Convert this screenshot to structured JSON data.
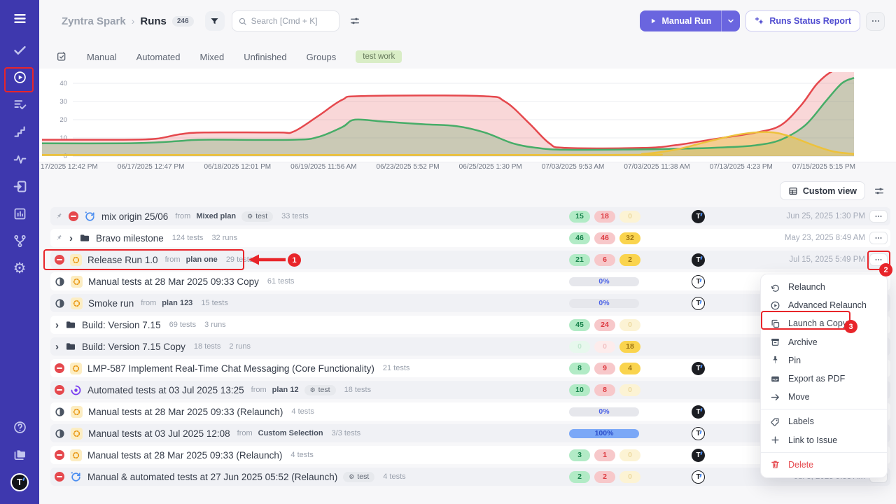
{
  "colors": {
    "accent": "#6a65df",
    "sidebar": "#3e38ae",
    "annotation": "#e8252a",
    "pass": "#17824b",
    "fail": "#e5484d",
    "pending": "#f0c02e"
  },
  "sidebar": {
    "menu_icon": "menu-icon",
    "top_icons": [
      {
        "name": "check-icon"
      },
      {
        "name": "play-circle-icon",
        "active": true,
        "annotated": true
      },
      {
        "name": "list-check-icon"
      },
      {
        "name": "steps-icon"
      },
      {
        "name": "pulse-icon"
      },
      {
        "name": "import-box-icon"
      },
      {
        "name": "bar-chart-icon"
      },
      {
        "name": "branch-icon"
      },
      {
        "name": "gear-icon"
      }
    ],
    "bottom_icons": [
      {
        "name": "help-icon"
      },
      {
        "name": "folders-icon"
      }
    ],
    "avatar_label": "T"
  },
  "header": {
    "breadcrumb": {
      "project": "Zyntra Spark",
      "separator": "›",
      "page": "Runs",
      "count": "246"
    },
    "search": {
      "placeholder": "Search [Cmd + K]"
    },
    "manual_run_label": "Manual Run",
    "runs_status_report_label": "Runs Status Report"
  },
  "tabs": {
    "items": [
      "Manual",
      "Automated",
      "Mixed",
      "Unfinished",
      "Groups"
    ],
    "label_chip": "test work"
  },
  "chart_data": {
    "type": "area",
    "title": "",
    "xlabel": "",
    "ylabel": "",
    "ylim": [
      0,
      45
    ],
    "yticks": [
      0,
      10,
      20,
      30,
      40
    ],
    "grid": true,
    "x_labels": [
      "17/2025 12:42 PM",
      "06/17/2025 12:47 PM",
      "06/18/2025 12:01 PM",
      "06/19/2025 11:56 AM",
      "06/23/2025 5:52 PM",
      "06/25/2025 1:30 PM",
      "07/03/2025 9:53 AM",
      "07/03/2025 11:38 AM",
      "07/13/2025 4:23 PM",
      "07/15/2025 5:15 PM"
    ],
    "series": [
      {
        "name": "failed",
        "color": "#e5484d",
        "fill": "rgba(229,72,77,0.22)",
        "points": [
          [
            0,
            9
          ],
          [
            0.1,
            9
          ],
          [
            0.14,
            9.5
          ],
          [
            0.17,
            12
          ],
          [
            0.2,
            13
          ],
          [
            0.29,
            13
          ],
          [
            0.31,
            13.5
          ],
          [
            0.34,
            22
          ],
          [
            0.37,
            31
          ],
          [
            0.395,
            33
          ],
          [
            0.54,
            33
          ],
          [
            0.57,
            30
          ],
          [
            0.6,
            18
          ],
          [
            0.625,
            7
          ],
          [
            0.645,
            4.5
          ],
          [
            0.74,
            4.5
          ],
          [
            0.78,
            6
          ],
          [
            0.83,
            9.5
          ],
          [
            0.88,
            13
          ],
          [
            0.91,
            17
          ],
          [
            0.935,
            28
          ],
          [
            0.955,
            40
          ],
          [
            0.975,
            47
          ],
          [
            1,
            49
          ]
        ]
      },
      {
        "name": "passed",
        "color": "#47ad68",
        "fill": "rgba(104,170,110,0.32)",
        "points": [
          [
            0,
            7
          ],
          [
            0.1,
            7
          ],
          [
            0.14,
            7.5
          ],
          [
            0.17,
            8.3
          ],
          [
            0.2,
            9
          ],
          [
            0.31,
            9
          ],
          [
            0.34,
            10.5
          ],
          [
            0.37,
            16
          ],
          [
            0.385,
            20
          ],
          [
            0.42,
            19
          ],
          [
            0.47,
            17.5
          ],
          [
            0.51,
            16.5
          ],
          [
            0.545,
            13
          ],
          [
            0.58,
            7
          ],
          [
            0.61,
            4.5
          ],
          [
            0.645,
            3.5
          ],
          [
            0.74,
            3.7
          ],
          [
            0.8,
            4.2
          ],
          [
            0.85,
            5
          ],
          [
            0.88,
            6
          ],
          [
            0.91,
            9
          ],
          [
            0.94,
            17
          ],
          [
            0.965,
            30
          ],
          [
            0.985,
            40
          ],
          [
            1,
            43
          ]
        ]
      },
      {
        "name": "pending",
        "color": "#edc23c",
        "fill": "rgba(237,194,60,0.45)",
        "points": [
          [
            0,
            0.7
          ],
          [
            0.7,
            0.7
          ],
          [
            0.74,
            1.2
          ],
          [
            0.78,
            3.5
          ],
          [
            0.82,
            8
          ],
          [
            0.86,
            12
          ],
          [
            0.895,
            13.2
          ],
          [
            0.92,
            11
          ],
          [
            0.95,
            6
          ],
          [
            0.975,
            2.5
          ],
          [
            1,
            1.2
          ]
        ]
      }
    ]
  },
  "toolbar": {
    "custom_view_label": "Custom view"
  },
  "table": {
    "from_label": "from",
    "rows": [
      {
        "pinned": true,
        "status": "blocked",
        "type": "mixed",
        "title": "mix origin 25/06",
        "from": "Mixed plan",
        "tag": "test",
        "meta": [
          "33 tests"
        ],
        "counts": [
          {
            "v": "15",
            "k": "green"
          },
          {
            "v": "18",
            "k": "red"
          },
          {
            "v": "0",
            "k": "yellow",
            "faded": true
          }
        ],
        "avatar": "filled",
        "date": "Jun 25, 2025 1:30 PM",
        "dots": true
      },
      {
        "pinned": true,
        "chevron": true,
        "type": "folder",
        "title": "Bravo milestone",
        "meta": [
          "124 tests",
          "32 runs"
        ],
        "counts": [
          {
            "v": "46",
            "k": "green"
          },
          {
            "v": "46",
            "k": "red"
          },
          {
            "v": "32",
            "k": "yellow"
          }
        ],
        "date": "May 23, 2025 8:49 AM",
        "dots": true
      },
      {
        "status": "blocked",
        "type": "manual",
        "title": "Release Run 1.0",
        "from": "plan one",
        "meta": [
          "29 tests"
        ],
        "counts": [
          {
            "v": "21",
            "k": "green"
          },
          {
            "v": "6",
            "k": "red"
          },
          {
            "v": "2",
            "k": "yellow"
          }
        ],
        "avatar": "filled",
        "date": "Jul 15, 2025 5:49 PM",
        "dots": true
      },
      {
        "status": "half",
        "type": "manual",
        "title": "Manual tests at 28 Mar 2025 09:33 Copy",
        "meta": [
          "61 tests"
        ],
        "progress": {
          "label": "0%",
          "full": false
        },
        "avatar": "outline"
      },
      {
        "status": "half",
        "type": "manual",
        "title": "Smoke run",
        "from": "plan 123",
        "meta": [
          "15 tests"
        ],
        "progress": {
          "label": "0%",
          "full": false
        },
        "avatar": "outline"
      },
      {
        "chevron": true,
        "type": "folder",
        "title": "Build: Version 7.15",
        "meta": [
          "69 tests",
          "3 runs"
        ],
        "counts": [
          {
            "v": "45",
            "k": "green"
          },
          {
            "v": "24",
            "k": "red"
          },
          {
            "v": "0",
            "k": "yellow",
            "faded": true
          }
        ]
      },
      {
        "chevron": true,
        "type": "folder",
        "title": "Build: Version 7.15 Copy",
        "meta": [
          "18 tests",
          "2 runs"
        ],
        "counts": [
          {
            "v": "0",
            "k": "green",
            "faded": true
          },
          {
            "v": "0",
            "k": "red",
            "faded": true
          },
          {
            "v": "18",
            "k": "yellow"
          }
        ]
      },
      {
        "status": "blocked",
        "type": "manual",
        "title": "LMP-587 Implement Real-Time Chat Messaging (Core Functionality)",
        "meta": [
          "21 tests"
        ],
        "counts": [
          {
            "v": "8",
            "k": "green"
          },
          {
            "v": "9",
            "k": "red"
          },
          {
            "v": "4",
            "k": "yellow"
          }
        ],
        "avatar": "filled"
      },
      {
        "status": "blocked",
        "type": "automated",
        "title": "Automated tests at 03 Jul 2025 13:25",
        "from": "plan 12",
        "tag": "test",
        "meta": [
          "18 tests"
        ],
        "counts": [
          {
            "v": "10",
            "k": "green"
          },
          {
            "v": "8",
            "k": "red"
          },
          {
            "v": "0",
            "k": "yellow",
            "faded": true
          }
        ]
      },
      {
        "status": "half",
        "type": "manual",
        "title": "Manual tests at 28 Mar 2025 09:33 (Relaunch)",
        "meta": [
          "4 tests"
        ],
        "progress": {
          "label": "0%",
          "full": false
        },
        "avatar": "filled"
      },
      {
        "status": "half",
        "type": "manual",
        "title": "Manual tests at 03 Jul 2025 12:08",
        "from": "Custom Selection",
        "meta": [
          "3/3 tests"
        ],
        "progress": {
          "label": "100%",
          "full": true
        },
        "avatar": "outline"
      },
      {
        "status": "blocked",
        "type": "manual",
        "title": "Manual tests at 28 Mar 2025 09:33 (Relaunch)",
        "meta": [
          "4 tests"
        ],
        "counts": [
          {
            "v": "3",
            "k": "green"
          },
          {
            "v": "1",
            "k": "red"
          },
          {
            "v": "0",
            "k": "yellow",
            "faded": true
          }
        ],
        "avatar": "filled"
      },
      {
        "status": "blocked",
        "type": "mixed",
        "title": "Manual & automated tests at 27 Jun 2025 05:52 (Relaunch)",
        "tag": "test",
        "meta": [
          "4 tests"
        ],
        "counts": [
          {
            "v": "2",
            "k": "green"
          },
          {
            "v": "2",
            "k": "red"
          },
          {
            "v": "0",
            "k": "yellow",
            "faded": true
          }
        ],
        "avatar": "outline",
        "date": "Jul 3, 2025 9:53 AM",
        "dots": true
      }
    ]
  },
  "context_menu": {
    "items": [
      {
        "label": "Relaunch",
        "icon": "relaunch-icon"
      },
      {
        "label": "Advanced Relaunch",
        "icon": "advanced-relaunch-icon"
      },
      {
        "label": "Launch a Copy",
        "icon": "copy-icon",
        "annotated": true
      },
      {
        "label": "Archive",
        "icon": "archive-icon"
      },
      {
        "label": "Pin",
        "icon": "pin-icon"
      },
      {
        "label": "Export as PDF",
        "icon": "pdf-icon"
      },
      {
        "label": "Move",
        "icon": "move-icon"
      },
      {
        "label": "Labels",
        "icon": "labels-icon",
        "divider_before": true
      },
      {
        "label": "Link to Issue",
        "icon": "plus-icon"
      },
      {
        "label": "Delete",
        "icon": "trash-icon",
        "danger": true,
        "divider_before": true
      }
    ]
  },
  "annotations": {
    "step1": "1",
    "step2": "2",
    "step3": "3"
  }
}
